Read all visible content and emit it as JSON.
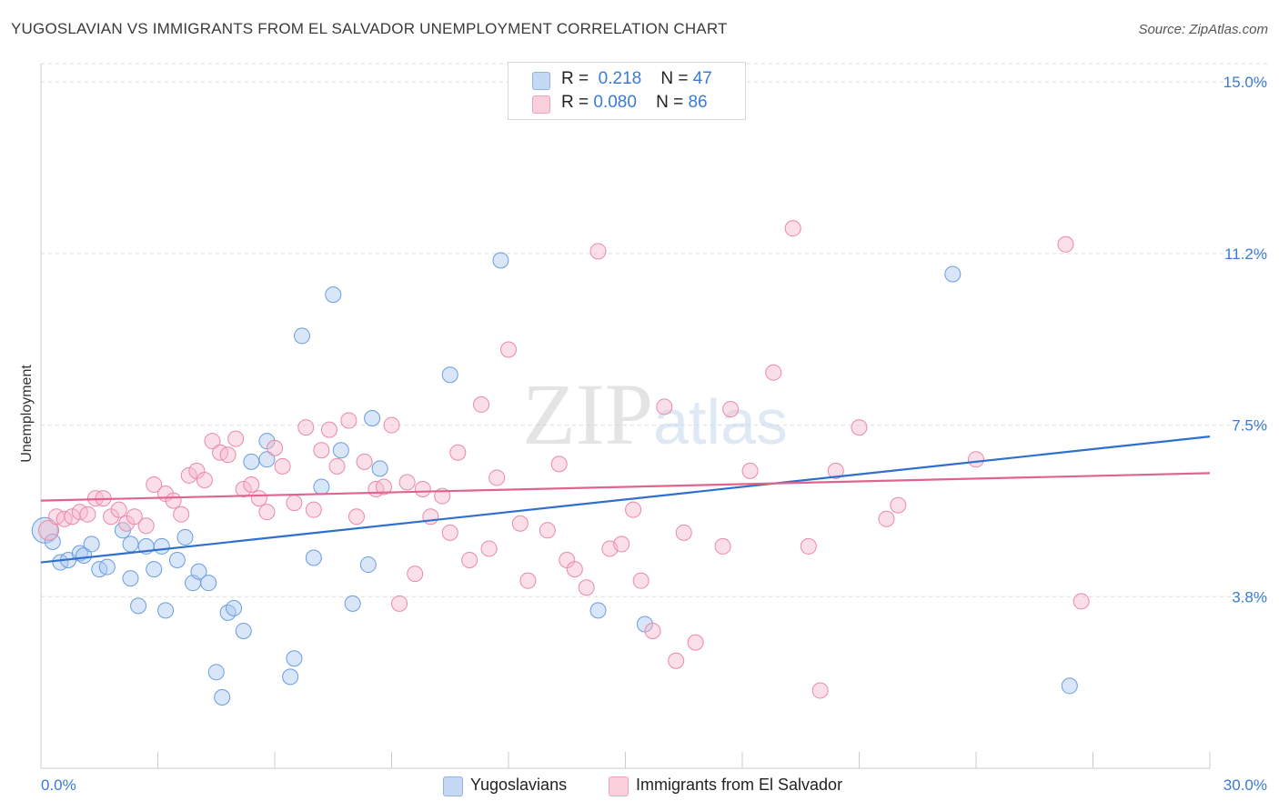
{
  "title": "YUGOSLAVIAN VS IMMIGRANTS FROM EL SALVADOR UNEMPLOYMENT CORRELATION CHART",
  "source": "Source: ZipAtlas.com",
  "watermark": "ZIPatlas",
  "legend": {
    "rows": [
      {
        "r_label": "R =",
        "r_value": "0.218",
        "n_label": "N =",
        "n_value": "47",
        "color": "#a9c8f0"
      },
      {
        "r_label": "R =",
        "r_value": "0.080",
        "n_label": "N =",
        "n_value": "86",
        "color": "#f6b8cc"
      }
    ]
  },
  "bottom_legend": [
    {
      "label": "Yugoslavians",
      "color": "#a9c8f0"
    },
    {
      "label": "Immigrants from El Salvador",
      "color": "#f6b8cc"
    }
  ],
  "chart_data": {
    "type": "scatter",
    "ylabel": "Unemployment",
    "x_tick_labels": [
      "0.0%",
      "30.0%"
    ],
    "y_tick_labels": [
      "15.0%",
      "11.2%",
      "7.5%",
      "3.8%"
    ],
    "xlim": [
      0,
      30
    ],
    "ylim": [
      0,
      15.4
    ],
    "y_ticks": [
      15.0,
      11.25,
      7.5,
      3.75
    ],
    "grid": true,
    "series": [
      {
        "name": "Yugoslavians",
        "color": "#a9c8f0",
        "stroke": "#6a9de0",
        "line_color": "#2f6fce",
        "trend": {
          "x": [
            0,
            30
          ],
          "y": [
            4.5,
            7.25
          ]
        },
        "points": [
          [
            0.1,
            5.2
          ],
          [
            0.3,
            4.95
          ],
          [
            0.5,
            4.5
          ],
          [
            0.7,
            4.55
          ],
          [
            1.0,
            4.7
          ],
          [
            1.1,
            4.65
          ],
          [
            1.3,
            4.9
          ],
          [
            1.5,
            4.35
          ],
          [
            1.7,
            4.4
          ],
          [
            2.1,
            5.2
          ],
          [
            2.3,
            4.9
          ],
          [
            2.3,
            4.15
          ],
          [
            2.5,
            3.55
          ],
          [
            2.7,
            4.85
          ],
          [
            2.9,
            4.35
          ],
          [
            3.1,
            4.85
          ],
          [
            3.2,
            3.45
          ],
          [
            3.5,
            4.55
          ],
          [
            3.7,
            5.05
          ],
          [
            3.9,
            4.05
          ],
          [
            4.05,
            4.3
          ],
          [
            4.3,
            4.05
          ],
          [
            4.5,
            2.1
          ],
          [
            4.65,
            1.55
          ],
          [
            4.8,
            3.4
          ],
          [
            4.95,
            3.5
          ],
          [
            5.2,
            3.0
          ],
          [
            5.4,
            6.7
          ],
          [
            5.8,
            7.15
          ],
          [
            5.8,
            6.75
          ],
          [
            6.4,
            2.0
          ],
          [
            6.5,
            2.4
          ],
          [
            6.7,
            9.45
          ],
          [
            7.0,
            4.6
          ],
          [
            7.2,
            6.15
          ],
          [
            7.5,
            10.35
          ],
          [
            7.7,
            6.95
          ],
          [
            8.0,
            3.6
          ],
          [
            8.4,
            4.45
          ],
          [
            8.5,
            7.65
          ],
          [
            8.7,
            6.55
          ],
          [
            10.5,
            8.6
          ],
          [
            11.8,
            11.1
          ],
          [
            14.3,
            3.45
          ],
          [
            15.5,
            3.15
          ],
          [
            23.4,
            10.8
          ],
          [
            26.4,
            1.8
          ]
        ]
      },
      {
        "name": "Immigrants from El Salvador",
        "color": "#f6b8cc",
        "stroke": "#e88aa8",
        "line_color": "#e0648e",
        "trend": {
          "x": [
            0,
            30
          ],
          "y": [
            5.85,
            6.45
          ]
        },
        "points": [
          [
            0.2,
            5.2
          ],
          [
            0.4,
            5.5
          ],
          [
            0.6,
            5.45
          ],
          [
            0.8,
            5.5
          ],
          [
            1.0,
            5.6
          ],
          [
            1.2,
            5.55
          ],
          [
            1.4,
            5.9
          ],
          [
            1.6,
            5.9
          ],
          [
            1.8,
            5.5
          ],
          [
            2.0,
            5.65
          ],
          [
            2.2,
            5.35
          ],
          [
            2.4,
            5.5
          ],
          [
            2.7,
            5.3
          ],
          [
            2.9,
            6.2
          ],
          [
            3.2,
            6.0
          ],
          [
            3.4,
            5.85
          ],
          [
            3.6,
            5.55
          ],
          [
            3.8,
            6.4
          ],
          [
            4.0,
            6.5
          ],
          [
            4.2,
            6.3
          ],
          [
            4.4,
            7.15
          ],
          [
            4.6,
            6.9
          ],
          [
            4.8,
            6.85
          ],
          [
            5.0,
            7.2
          ],
          [
            5.2,
            6.1
          ],
          [
            5.4,
            6.2
          ],
          [
            5.6,
            5.9
          ],
          [
            5.8,
            5.6
          ],
          [
            6.0,
            7.0
          ],
          [
            6.2,
            6.6
          ],
          [
            6.5,
            5.8
          ],
          [
            6.8,
            7.45
          ],
          [
            7.0,
            5.65
          ],
          [
            7.2,
            6.95
          ],
          [
            7.4,
            7.4
          ],
          [
            7.6,
            6.6
          ],
          [
            7.9,
            7.6
          ],
          [
            8.1,
            5.5
          ],
          [
            8.3,
            6.7
          ],
          [
            8.6,
            6.1
          ],
          [
            8.8,
            6.15
          ],
          [
            9.0,
            7.5
          ],
          [
            9.2,
            3.6
          ],
          [
            9.4,
            6.25
          ],
          [
            9.6,
            4.25
          ],
          [
            9.8,
            6.1
          ],
          [
            10.0,
            5.5
          ],
          [
            10.3,
            5.95
          ],
          [
            10.5,
            5.15
          ],
          [
            10.7,
            6.9
          ],
          [
            11.0,
            4.55
          ],
          [
            11.3,
            7.95
          ],
          [
            11.5,
            4.8
          ],
          [
            11.7,
            6.35
          ],
          [
            12.0,
            9.15
          ],
          [
            12.3,
            5.35
          ],
          [
            12.5,
            4.1
          ],
          [
            13.0,
            5.2
          ],
          [
            13.3,
            6.65
          ],
          [
            13.5,
            4.55
          ],
          [
            13.7,
            4.35
          ],
          [
            14.0,
            3.95
          ],
          [
            14.3,
            11.3
          ],
          [
            14.6,
            4.8
          ],
          [
            14.9,
            4.9
          ],
          [
            15.2,
            5.65
          ],
          [
            15.4,
            4.1
          ],
          [
            15.7,
            3.0
          ],
          [
            16.0,
            7.9
          ],
          [
            16.3,
            2.35
          ],
          [
            16.5,
            5.15
          ],
          [
            16.8,
            2.75
          ],
          [
            17.5,
            4.85
          ],
          [
            17.7,
            7.85
          ],
          [
            18.2,
            6.5
          ],
          [
            18.8,
            8.65
          ],
          [
            19.3,
            11.8
          ],
          [
            19.7,
            4.85
          ],
          [
            20.0,
            1.7
          ],
          [
            20.4,
            6.5
          ],
          [
            21.0,
            7.45
          ],
          [
            21.7,
            5.45
          ],
          [
            22.0,
            5.75
          ],
          [
            24.0,
            6.75
          ],
          [
            26.3,
            11.45
          ],
          [
            26.7,
            3.65
          ]
        ]
      }
    ]
  }
}
